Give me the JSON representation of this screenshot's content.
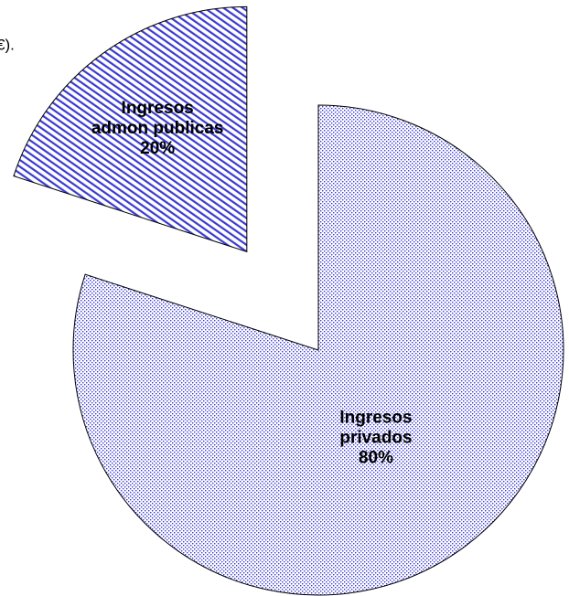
{
  "chart_data": {
    "type": "pie",
    "title": "€).",
    "categories": [
      "Ingresos privados",
      "Ingresos admon publicas"
    ],
    "values": [
      80,
      20
    ],
    "value_labels": [
      "80%",
      "20%"
    ],
    "explode": [
      false,
      true
    ],
    "colors": [
      "#3a3ad0",
      "#3a3ad0"
    ]
  }
}
